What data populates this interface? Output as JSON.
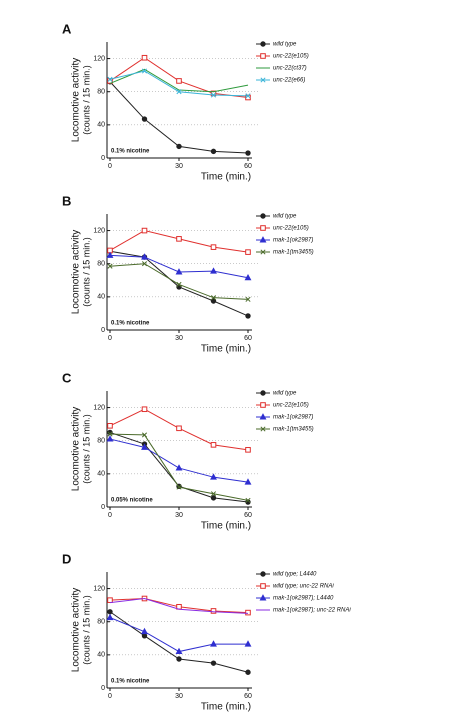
{
  "chart_data": [
    {
      "type": "line",
      "label": "A",
      "ylabel": [
        "Locomotive activity",
        "(counts / 15 min.)"
      ],
      "xlabel": "Time (min.)",
      "annotation": "0.1% nicotine",
      "x": [
        0,
        15,
        30,
        45,
        60
      ],
      "xlim": [
        0,
        60
      ],
      "xticks": [
        0,
        30,
        60
      ],
      "ylim": [
        0,
        140
      ],
      "yticks": [
        0,
        40,
        80,
        120
      ],
      "grid": true,
      "series": [
        {
          "name": "wild type",
          "color": "#222222",
          "marker": "circle",
          "values": [
            92,
            47,
            14,
            8,
            6
          ]
        },
        {
          "name": "unc-22(e105)",
          "color": "#e0302e",
          "marker": "square",
          "values": [
            93,
            121,
            93,
            78,
            73
          ]
        },
        {
          "name": "unc-22(ct37)",
          "color": "#2e9a3c",
          "marker": "none",
          "values": [
            90,
            107,
            82,
            80,
            88
          ]
        },
        {
          "name": "unc-22(e66)",
          "color": "#3ab4d8",
          "marker": "x",
          "values": [
            95,
            105,
            80,
            76,
            75
          ]
        }
      ]
    },
    {
      "type": "line",
      "label": "B",
      "ylabel": [
        "Locomotive activity",
        "(counts / 15 min.)"
      ],
      "xlabel": "Time (min.)",
      "annotation": "0.1% nicotine",
      "x": [
        0,
        15,
        30,
        45,
        60
      ],
      "xlim": [
        0,
        60
      ],
      "xticks": [
        0,
        30,
        60
      ],
      "ylim": [
        0,
        140
      ],
      "yticks": [
        0,
        40,
        80,
        120
      ],
      "grid": true,
      "series": [
        {
          "name": "wild type",
          "color": "#222222",
          "marker": "circle",
          "values": [
            95,
            88,
            52,
            35,
            17
          ]
        },
        {
          "name": "unc-22(e105)",
          "color": "#e0302e",
          "marker": "square",
          "values": [
            96,
            120,
            110,
            100,
            94
          ]
        },
        {
          "name": "mak-1(ok2987)",
          "color": "#2f2fd0",
          "marker": "triangle",
          "values": [
            90,
            88,
            70,
            71,
            63
          ]
        },
        {
          "name": "mak-1(tm3455)",
          "color": "#4a6a2a",
          "marker": "x",
          "values": [
            77,
            80,
            55,
            39,
            37
          ]
        }
      ]
    },
    {
      "type": "line",
      "label": "C",
      "ylabel": [
        "Locomotive activity",
        "(counts / 15 min.)"
      ],
      "xlabel": "Time (min.)",
      "annotation": "0.05% nicotine",
      "x": [
        0,
        15,
        30,
        45,
        60
      ],
      "xlim": [
        0,
        60
      ],
      "xticks": [
        0,
        30,
        60
      ],
      "ylim": [
        0,
        140
      ],
      "yticks": [
        0,
        40,
        80,
        120
      ],
      "grid": true,
      "series": [
        {
          "name": "wild type",
          "color": "#222222",
          "marker": "circle",
          "values": [
            90,
            76,
            25,
            11,
            6
          ]
        },
        {
          "name": "unc-22(e105)",
          "color": "#e0302e",
          "marker": "square",
          "values": [
            98,
            118,
            95,
            75,
            69
          ]
        },
        {
          "name": "mak-1(ok2987)",
          "color": "#2f2fd0",
          "marker": "triangle",
          "values": [
            82,
            72,
            47,
            36,
            30
          ]
        },
        {
          "name": "mak-1(tm3455)",
          "color": "#4a6a2a",
          "marker": "x",
          "values": [
            88,
            87,
            24,
            16,
            8
          ]
        }
      ]
    },
    {
      "type": "line",
      "label": "D",
      "ylabel": [
        "Locomotive activity",
        "(counts / 15 min.)"
      ],
      "xlabel": "Time (min.)",
      "annotation": "0.1% nicotine",
      "x": [
        0,
        15,
        30,
        45,
        60
      ],
      "xlim": [
        0,
        60
      ],
      "xticks": [
        0,
        30,
        60
      ],
      "ylim": [
        0,
        140
      ],
      "yticks": [
        0,
        40,
        80,
        120
      ],
      "grid": true,
      "series": [
        {
          "name": "wild type; L4440",
          "color": "#222222",
          "marker": "circle",
          "values": [
            92,
            63,
            35,
            30,
            19
          ]
        },
        {
          "name": "wild type; unc-22 RNAi",
          "color": "#e0302e",
          "marker": "square",
          "values": [
            106,
            108,
            98,
            93,
            91
          ]
        },
        {
          "name": "mak-1(ok2987); L4440",
          "color": "#2f2fd0",
          "marker": "triangle",
          "values": [
            85,
            68,
            44,
            53,
            53
          ]
        },
        {
          "name": "mak-1(ok2987); unc-22 RNAi",
          "color": "#8a2be2",
          "marker": "none",
          "values": [
            103,
            108,
            95,
            92,
            90
          ]
        }
      ]
    }
  ]
}
